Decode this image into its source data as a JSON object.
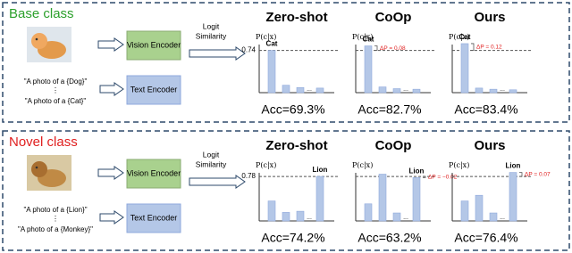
{
  "panels": [
    {
      "title": "Base class",
      "title_color": "#2ca02c",
      "prompts": [
        "\"A photo of a {Dog}\"",
        "⋮",
        "\"A photo of a {Cat}\""
      ],
      "vision_encoder": "Vision Encoder",
      "text_encoder": "Text Encoder",
      "logit_label": [
        "Logit",
        "Similarity"
      ],
      "y_axis_label": "P(c|x)",
      "threshold": 0.74,
      "charts": [
        {
          "title": "Zero-shot",
          "bars": [
            0.74,
            0.13,
            0.09,
            0.08
          ],
          "highlight": 0,
          "bar_label": "Cat",
          "ellipsis": "...",
          "accuracy": "Acc=69.3%"
        },
        {
          "title": "CoOp",
          "bars": [
            0.82,
            0.1,
            0.07,
            0.06
          ],
          "highlight": 0,
          "bar_label": "Cat",
          "delta_label": "ΔP = 0.08",
          "ellipsis": "...",
          "accuracy": "Acc=82.7%"
        },
        {
          "title": "Ours",
          "bars": [
            0.86,
            0.08,
            0.06,
            0.05
          ],
          "highlight": 0,
          "bar_label": "Cat",
          "delta_label": "ΔP = 0.12",
          "ellipsis": "...",
          "accuracy": "Acc=83.4%"
        }
      ]
    },
    {
      "title": "Novel class",
      "title_color": "#e02020",
      "prompts": [
        "\"A photo of a {Lion}\"",
        "⋮",
        "\"A photo of a {Monkey}\""
      ],
      "vision_encoder": "Vision Encoder",
      "text_encoder": "Text Encoder",
      "logit_label": [
        "Logit",
        "Similarity"
      ],
      "y_axis_label": "P(c|x)",
      "threshold": 0.78,
      "charts": [
        {
          "title": "Zero-shot",
          "bars": [
            0.35,
            0.15,
            0.17,
            0.78
          ],
          "highlight": 3,
          "bar_label": "Lion",
          "ellipsis": "...",
          "accuracy": "Acc=74.2%"
        },
        {
          "title": "CoOp",
          "bars": [
            0.3,
            0.82,
            0.14,
            0.76
          ],
          "highlight": 3,
          "bar_label": "Lion",
          "delta_label": "ΔP = −0.02",
          "ellipsis": "...",
          "accuracy": "Acc=63.2%"
        },
        {
          "title": "Ours",
          "bars": [
            0.35,
            0.45,
            0.14,
            0.85
          ],
          "highlight": 3,
          "bar_label": "Lion",
          "delta_label": "ΔP = 0.07",
          "ellipsis": "...",
          "accuracy": "Acc=76.4%"
        }
      ]
    }
  ]
}
